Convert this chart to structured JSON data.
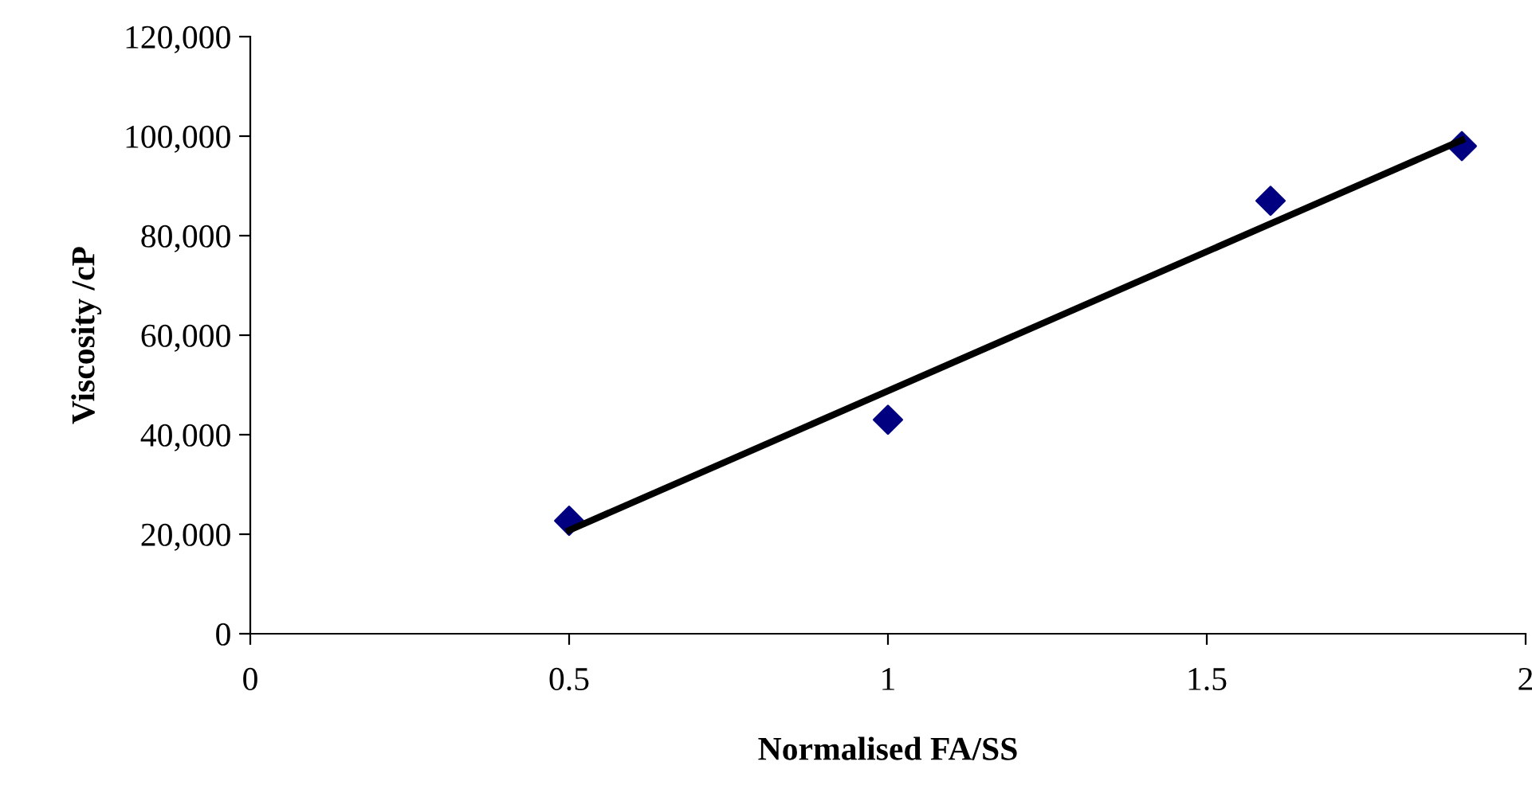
{
  "chart_data": {
    "type": "scatter",
    "xlabel": "Normalised FA/SS",
    "ylabel": "Viscosity /cP",
    "marker": "diamond",
    "grid": false,
    "legend": false,
    "xlim": [
      0,
      2
    ],
    "xticks": [
      0,
      0.5,
      1,
      1.5,
      2
    ],
    "ylim": [
      0,
      120000
    ],
    "yticks": [
      0,
      {
        "value": 20000,
        "label": "20,000"
      },
      {
        "value": 40000,
        "label": "40,000"
      },
      {
        "value": 60000,
        "label": "60,000"
      },
      {
        "value": 80000,
        "label": "80,000"
      },
      {
        "value": 100000,
        "label": "100,000"
      },
      {
        "value": 120000,
        "label": "120,000"
      }
    ],
    "series": [
      {
        "color": "#000080",
        "x": [
          0.5,
          1,
          1.6,
          1.9
        ],
        "values": [
          22700,
          43000,
          87000,
          98000
        ]
      },
      {
        "type": "line",
        "color": "#000000",
        "marker": "none",
        "x": [
          0.5,
          1.9
        ],
        "values": [
          20800,
          99200
        ]
      }
    ]
  }
}
